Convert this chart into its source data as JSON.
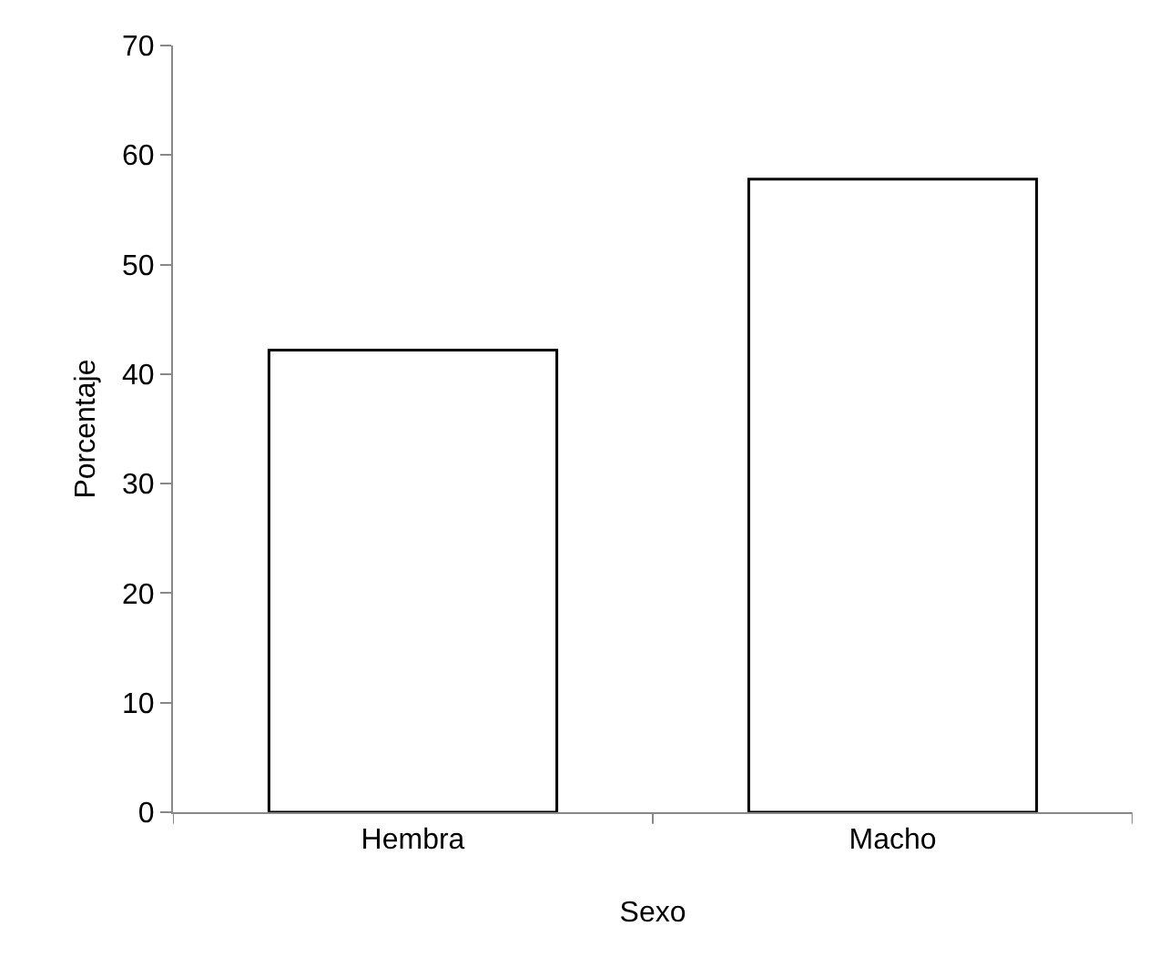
{
  "chart_data": {
    "type": "bar",
    "xlabel": "Sexo",
    "ylabel": "Porcentaje",
    "categories": [
      "Hembra",
      "Macho"
    ],
    "values": [
      42.2,
      57.8
    ],
    "color": "#ffffff",
    "ylim": [
      0,
      70
    ],
    "yticks": [
      0,
      10,
      20,
      30,
      40,
      50,
      60,
      70
    ]
  }
}
